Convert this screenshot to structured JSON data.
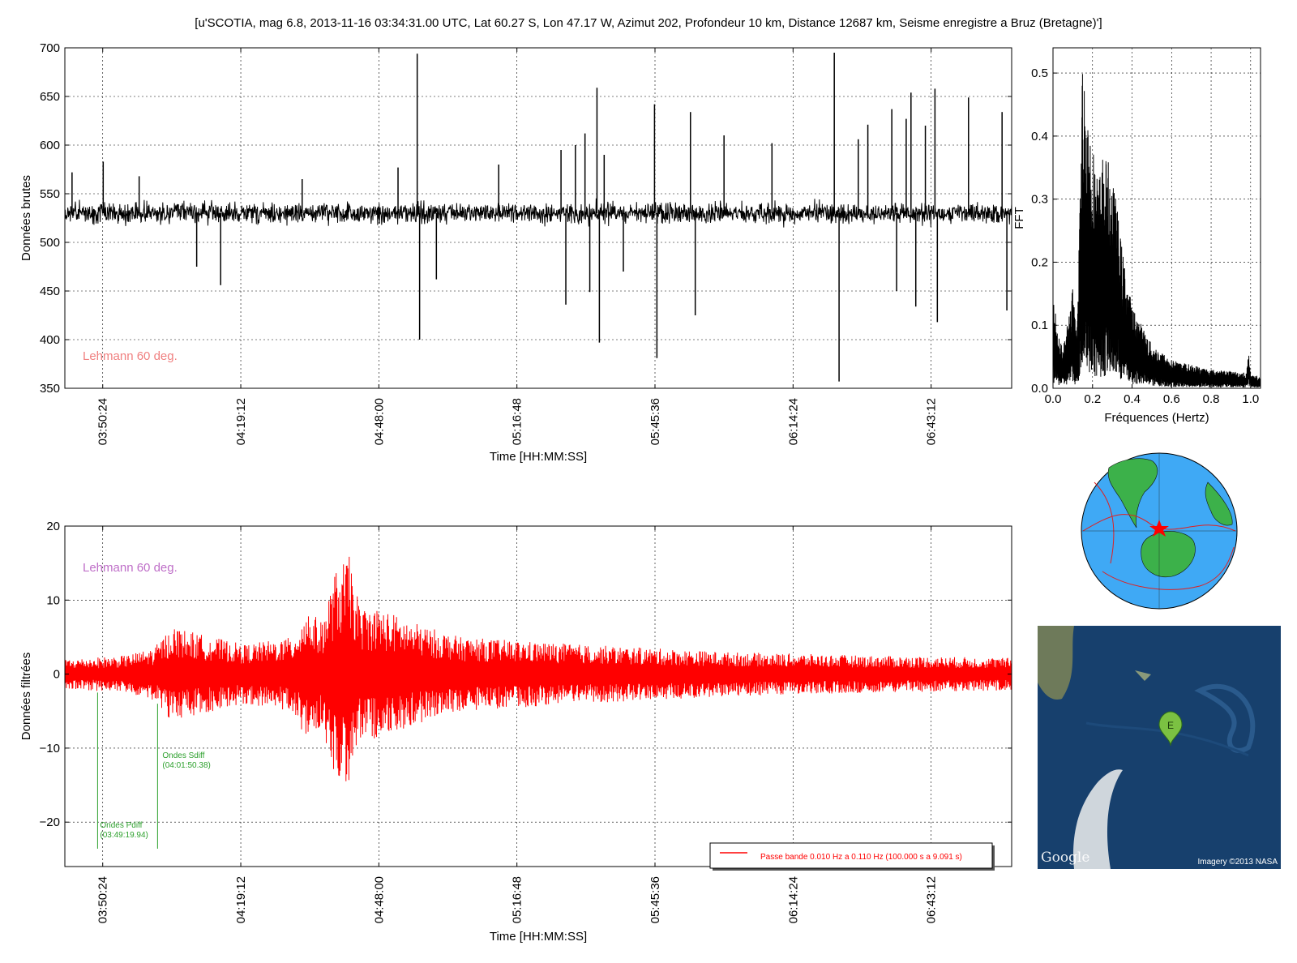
{
  "title": "[u'SCOTIA, mag 6.8, 2013-11-16 03:34:31.00 UTC, Lat 60.27 S, Lon 47.17 W, Azimut 202, Profondeur 10 km, Distance 12687 km, Seisme enregistre a Bruz (Bretagne)']",
  "colors": {
    "raw": "#000000",
    "filtered": "#ff0000",
    "picks": "#2ca02c",
    "lehmann_top": "#f08080",
    "lehmann_bottom": "#bf6fc8"
  },
  "chart_data": [
    {
      "id": "raw",
      "type": "line",
      "ylabel": "Données brutes",
      "xlabel": "Time [HH:MM:SS]",
      "ylim": [
        350,
        700
      ],
      "yticks": [
        350,
        400,
        450,
        500,
        550,
        600,
        650,
        700
      ],
      "xlim": [
        "03:42:30",
        "07:00:00"
      ],
      "xticks": [
        "03:50:24",
        "04:19:12",
        "04:48:00",
        "05:16:48",
        "05:45:36",
        "06:14:24",
        "06:43:12"
      ],
      "grid": true,
      "baseline": 530,
      "annotation": "Lehmann 60 deg.",
      "spikes": [
        {
          "t": "03:44:00",
          "y": 572
        },
        {
          "t": "03:50:30",
          "y": 583
        },
        {
          "t": "03:58:00",
          "y": 568
        },
        {
          "t": "04:10:00",
          "y": 475
        },
        {
          "t": "04:15:00",
          "y": 456
        },
        {
          "t": "04:32:00",
          "y": 565
        },
        {
          "t": "04:52:00",
          "y": 577
        },
        {
          "t": "04:56:00",
          "y": 694
        },
        {
          "t": "04:56:30",
          "y": 400
        },
        {
          "t": "05:00:00",
          "y": 462
        },
        {
          "t": "05:13:00",
          "y": 580
        },
        {
          "t": "05:26:00",
          "y": 595
        },
        {
          "t": "05:27:00",
          "y": 436
        },
        {
          "t": "05:29:00",
          "y": 600
        },
        {
          "t": "05:31:00",
          "y": 612
        },
        {
          "t": "05:32:00",
          "y": 449
        },
        {
          "t": "05:33:30",
          "y": 659
        },
        {
          "t": "05:34:00",
          "y": 397
        },
        {
          "t": "05:35:00",
          "y": 590
        },
        {
          "t": "05:39:00",
          "y": 470
        },
        {
          "t": "05:45:30",
          "y": 642
        },
        {
          "t": "05:46:00",
          "y": 381
        },
        {
          "t": "05:53:00",
          "y": 634
        },
        {
          "t": "05:54:00",
          "y": 425
        },
        {
          "t": "06:00:00",
          "y": 610
        },
        {
          "t": "06:10:00",
          "y": 602
        },
        {
          "t": "06:23:00",
          "y": 695
        },
        {
          "t": "06:24:00",
          "y": 357
        },
        {
          "t": "06:28:00",
          "y": 606
        },
        {
          "t": "06:30:00",
          "y": 621
        },
        {
          "t": "06:35:00",
          "y": 637
        },
        {
          "t": "06:36:00",
          "y": 450
        },
        {
          "t": "06:38:00",
          "y": 627
        },
        {
          "t": "06:39:00",
          "y": 654
        },
        {
          "t": "06:40:00",
          "y": 434
        },
        {
          "t": "06:42:00",
          "y": 620
        },
        {
          "t": "06:44:00",
          "y": 658
        },
        {
          "t": "06:44:30",
          "y": 418
        },
        {
          "t": "06:51:00",
          "y": 649
        },
        {
          "t": "06:58:00",
          "y": 634
        },
        {
          "t": "06:59:00",
          "y": 430
        }
      ]
    },
    {
      "id": "fft",
      "type": "line",
      "ylabel": "FFT",
      "xlabel": "Fréquences (Hertz)",
      "xlim": [
        0.0,
        1.05
      ],
      "ylim": [
        0.0,
        0.54
      ],
      "xticks": [
        0.0,
        0.2,
        0.4,
        0.6,
        0.8,
        1.0
      ],
      "xticklabels": [
        "0.0",
        "0.2",
        "0.4",
        "0.6",
        "0.8",
        "1.0"
      ],
      "yticks": [
        0.0,
        0.1,
        0.2,
        0.3,
        0.4,
        0.5
      ],
      "yticklabels": [
        "0.0",
        "0.1",
        "0.2",
        "0.3",
        "0.4",
        "0.5"
      ],
      "grid": true,
      "envelope": [
        {
          "f": 0.0,
          "a": 0.16
        },
        {
          "f": 0.02,
          "a": 0.1
        },
        {
          "f": 0.05,
          "a": 0.06
        },
        {
          "f": 0.1,
          "a": 0.16
        },
        {
          "f": 0.12,
          "a": 0.08
        },
        {
          "f": 0.14,
          "a": 0.38
        },
        {
          "f": 0.15,
          "a": 0.53
        },
        {
          "f": 0.17,
          "a": 0.46
        },
        {
          "f": 0.2,
          "a": 0.39
        },
        {
          "f": 0.23,
          "a": 0.33
        },
        {
          "f": 0.25,
          "a": 0.37
        },
        {
          "f": 0.28,
          "a": 0.36
        },
        {
          "f": 0.32,
          "a": 0.3
        },
        {
          "f": 0.35,
          "a": 0.22
        },
        {
          "f": 0.4,
          "a": 0.13
        },
        {
          "f": 0.5,
          "a": 0.07
        },
        {
          "f": 0.6,
          "a": 0.045
        },
        {
          "f": 0.8,
          "a": 0.03
        },
        {
          "f": 0.98,
          "a": 0.025
        },
        {
          "f": 0.99,
          "a": 0.07
        },
        {
          "f": 1.0,
          "a": 0.02
        },
        {
          "f": 1.05,
          "a": 0.02
        }
      ]
    },
    {
      "id": "filtered",
      "type": "line",
      "ylabel": "Données filtrées",
      "xlabel": "Time [HH:MM:SS]",
      "ylim": [
        -26,
        20
      ],
      "yticks": [
        -20,
        -10,
        0,
        10,
        20
      ],
      "yticklabels": [
        "−20",
        "−10",
        "0",
        "10",
        "20"
      ],
      "xlim": [
        "03:42:30",
        "07:00:00"
      ],
      "xticks": [
        "03:50:24",
        "04:19:12",
        "04:48:00",
        "05:16:48",
        "05:45:36",
        "06:14:24",
        "06:43:12"
      ],
      "grid": true,
      "annotation": "Lehmann 60 deg.",
      "envelope": [
        {
          "t": "03:42:30",
          "a": 2.0
        },
        {
          "t": "03:55:00",
          "a": 2.5
        },
        {
          "t": "04:01:00",
          "a": 3.5
        },
        {
          "t": "04:05:00",
          "a": 6.5
        },
        {
          "t": "04:10:00",
          "a": 5.5
        },
        {
          "t": "04:20:00",
          "a": 4.0
        },
        {
          "t": "04:30:00",
          "a": 5.0
        },
        {
          "t": "04:33:00",
          "a": 9.0
        },
        {
          "t": "04:36:00",
          "a": 7.0
        },
        {
          "t": "04:39:00",
          "a": 14.0
        },
        {
          "t": "04:42:00",
          "a": 16.0
        },
        {
          "t": "04:44:00",
          "a": 9.0
        },
        {
          "t": "04:48:00",
          "a": 9.0
        },
        {
          "t": "04:55:00",
          "a": 7.0
        },
        {
          "t": "05:05:00",
          "a": 5.0
        },
        {
          "t": "05:30:00",
          "a": 4.0
        },
        {
          "t": "06:00:00",
          "a": 3.0
        },
        {
          "t": "06:30:00",
          "a": 2.5
        },
        {
          "t": "07:00:00",
          "a": 2.2
        }
      ],
      "picks": [
        {
          "t": "03:49:19.94",
          "y_top": -2.5,
          "label": "Ondes Pdiff",
          "time_label": "(03:49:19.94)"
        },
        {
          "t": "04:01:50.38",
          "y_top": -4.0,
          "label": "Ondes Sdiff",
          "time_label": "(04:01:50.38)"
        }
      ],
      "legend": {
        "label": "Passe bande 0.010 Hz a 0.110 Hz (100.000 s a 9.091 s)",
        "placement": "lower-right"
      }
    }
  ],
  "globe": {
    "event_marker": "star-icon"
  },
  "map": {
    "marker_letter": "E",
    "logo": "Google",
    "credit": "Imagery ©2013 NASA"
  }
}
